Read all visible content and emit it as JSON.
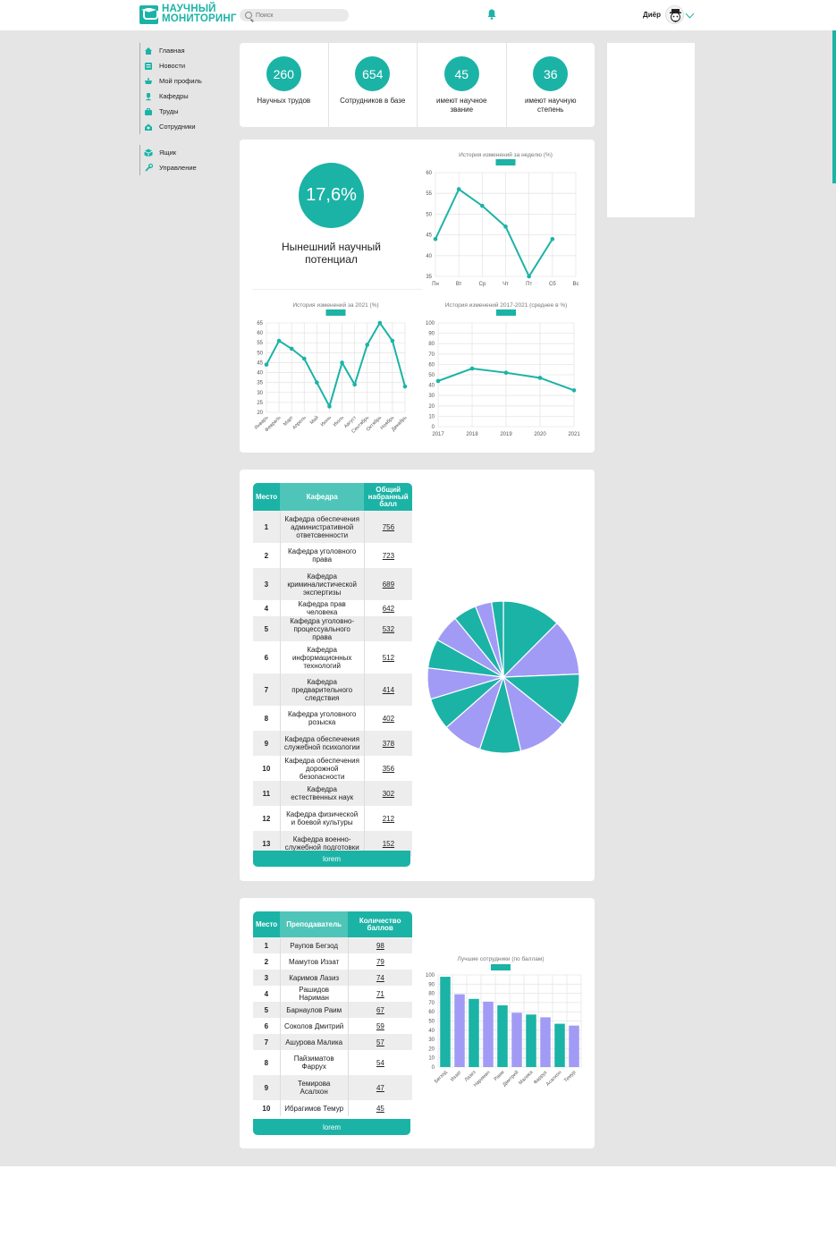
{
  "header": {
    "logo_line1": "НАУЧНЫЙ",
    "logo_line2": "МОНИТОРИНГ",
    "search_placeholder": "Поиск",
    "user_name": "Диёр"
  },
  "sidebar": {
    "group1": [
      {
        "label": "Главная",
        "icon": "home-icon"
      },
      {
        "label": "Новости",
        "icon": "news-icon"
      },
      {
        "label": "Мой профиль",
        "icon": "profile-icon"
      },
      {
        "label": "Кафедры",
        "icon": "departments-icon"
      },
      {
        "label": "Труды",
        "icon": "works-icon"
      },
      {
        "label": "Сотрудники",
        "icon": "staff-icon"
      }
    ],
    "group2": [
      {
        "label": "Ящик",
        "icon": "box-icon"
      },
      {
        "label": "Управление",
        "icon": "tools-icon"
      }
    ]
  },
  "stats": [
    {
      "value": "260",
      "label": "Научных трудов"
    },
    {
      "value": "654",
      "label": "Сотрудников в базе"
    },
    {
      "value": "45",
      "label": "имеют научное звание"
    },
    {
      "value": "36",
      "label": "имеют научную степень"
    }
  ],
  "potential": {
    "value": "17,6%",
    "label": "Нынешний научный потенциал"
  },
  "colors": {
    "accent": "#1bb3a6",
    "accent_light": "#4ec5b8",
    "purple": "#a29bf5"
  },
  "chart_data": [
    {
      "type": "line",
      "title": "История изменений за неделю (%)",
      "categories": [
        "Пн",
        "Вт",
        "Ср",
        "Чт",
        "Пт",
        "Сб",
        "Вс"
      ],
      "values": [
        44,
        56,
        52,
        47,
        35,
        44,
        null
      ],
      "ylim": [
        35,
        60
      ],
      "yticks": [
        35,
        40,
        45,
        50,
        55,
        60
      ],
      "grid": true
    },
    {
      "type": "line",
      "title": "История изменений за 2021 (%)",
      "categories": [
        "Январь",
        "Февраль",
        "Март",
        "Апрель",
        "Май",
        "Июнь",
        "Июль",
        "Август",
        "Сентябрь",
        "Октябрь",
        "Ноябрь",
        "Декабрь"
      ],
      "values": [
        44,
        56,
        52,
        47,
        35,
        23,
        45,
        34,
        54,
        65,
        56,
        33
      ],
      "values_note": "",
      "ylim": [
        20,
        65
      ],
      "yticks": [
        20,
        25,
        30,
        35,
        40,
        45,
        50,
        55,
        60,
        65
      ],
      "grid": true
    },
    {
      "type": "line",
      "title": "История изменений 2017-2021 (среднее в %)",
      "categories": [
        "2017",
        "2018",
        "2019",
        "2020",
        "2021"
      ],
      "values": [
        44,
        56,
        52,
        47,
        35
      ],
      "ylim": [
        0,
        100
      ],
      "yticks": [
        0,
        10,
        20,
        30,
        40,
        50,
        60,
        70,
        80,
        90,
        100
      ],
      "grid": true
    },
    {
      "type": "pie",
      "categories": [
        "1",
        "2",
        "3",
        "4",
        "5",
        "6",
        "7",
        "8",
        "9",
        "10",
        "11",
        "12",
        "13"
      ],
      "values": [
        756,
        723,
        689,
        642,
        532,
        512,
        414,
        402,
        378,
        356,
        302,
        212,
        152
      ]
    },
    {
      "type": "bar",
      "title": "Лучшие сотрудники (по баллам)",
      "categories": [
        "Бегзод",
        "Иззат",
        "Лазиз",
        "Нариман",
        "Раим",
        "Дмитрий",
        "Малика",
        "Фаррух",
        "Асалхон",
        "Темур"
      ],
      "values": [
        98,
        79,
        74,
        71,
        67,
        59,
        57,
        54,
        47,
        45
      ],
      "ylim": [
        0,
        100
      ],
      "yticks": [
        0,
        10,
        20,
        30,
        40,
        50,
        60,
        70,
        80,
        90,
        100
      ],
      "grid": true
    }
  ],
  "departments_table": {
    "headers": [
      "Место",
      "Кафедра",
      "Общий набранный балл"
    ],
    "rows": [
      {
        "place": "1",
        "name": "Кафедра обеспечения административной ответсвенности",
        "score": "756"
      },
      {
        "place": "2",
        "name": "Кафедра уголовного права",
        "score": "723"
      },
      {
        "place": "3",
        "name": "Кафедра криминалистической экспертизы",
        "score": "689"
      },
      {
        "place": "4",
        "name": "Кафедра прав человека",
        "score": "642"
      },
      {
        "place": "5",
        "name": "Кафедра уголовно-процессуального права",
        "score": "532"
      },
      {
        "place": "6",
        "name": "Кафедра информационных технологий",
        "score": "512"
      },
      {
        "place": "7",
        "name": "Кафедра предварительного следствия",
        "score": "414"
      },
      {
        "place": "8",
        "name": "Кафедра уголовного розыска",
        "score": "402"
      },
      {
        "place": "9",
        "name": "Кафедра обеспечения служебной психологии",
        "score": "378"
      },
      {
        "place": "10",
        "name": "Кафедра обеспечения дорожной безопасности",
        "score": "356"
      },
      {
        "place": "11",
        "name": "Кафедра естественных наук",
        "score": "302"
      },
      {
        "place": "12",
        "name": "Кафедра физической и боевой культуры",
        "score": "212"
      },
      {
        "place": "13",
        "name": "Кафедра военно-служебной подготовки",
        "score": "152"
      }
    ],
    "button_label": "lorem"
  },
  "teachers_table": {
    "headers": [
      "Место",
      "Преподаватель",
      "Количество баллов"
    ],
    "rows": [
      {
        "place": "1",
        "name": "Раупов Бегзод",
        "score": "98"
      },
      {
        "place": "2",
        "name": "Мамутов Иззат",
        "score": "79"
      },
      {
        "place": "3",
        "name": "Каримов Лазиз",
        "score": "74"
      },
      {
        "place": "4",
        "name": "Рашидов Нариман",
        "score": "71"
      },
      {
        "place": "5",
        "name": "Барнаулов Раим",
        "score": "67"
      },
      {
        "place": "6",
        "name": "Соколов Дмитрий",
        "score": "59"
      },
      {
        "place": "7",
        "name": "Ашурова Малика",
        "score": "57"
      },
      {
        "place": "8",
        "name": "Пайзиматов Фаррух",
        "score": "54"
      },
      {
        "place": "9",
        "name": "Темирова Асалхон",
        "score": "47"
      },
      {
        "place": "10",
        "name": "Ибрагимов Темур",
        "score": "45"
      }
    ],
    "button_label": "lorem"
  }
}
